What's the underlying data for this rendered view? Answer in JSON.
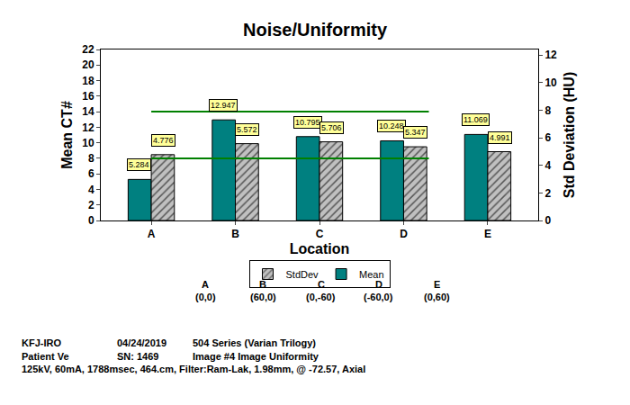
{
  "chart_data": {
    "type": "bar",
    "title": "Noise/Uniformity",
    "x_label": "Location",
    "y_label": "Mean CT#",
    "y2_label": "Std Deviation (HU)",
    "categories": [
      "A",
      "B",
      "C",
      "D",
      "E"
    ],
    "series": [
      {
        "name": "Mean",
        "color": "#008080",
        "values": [
          5.284,
          12.947,
          10.795,
          10.248,
          11.069
        ]
      },
      {
        "name": "StdDev",
        "color": "#c0c0c0",
        "marker": "hatched",
        "axis": "y2",
        "values": [
          4.776,
          5.572,
          5.706,
          5.347,
          4.991
        ]
      }
    ],
    "ylim": [
      0,
      22
    ],
    "yticks": [
      0,
      2,
      4,
      6,
      8,
      10,
      12,
      14,
      16,
      18,
      20,
      22
    ],
    "y2lim": [
      0,
      12.4
    ],
    "y2ticks": [
      0,
      2,
      4,
      6,
      8,
      10,
      12
    ],
    "grid": false,
    "legend": "bottom",
    "data_labels": true,
    "reference_lines": [
      {
        "axis": "y",
        "value": 14,
        "color": "#008000",
        "from": "A",
        "to": "D"
      },
      {
        "axis": "y",
        "value": 8,
        "color": "#008000",
        "from": "A",
        "to": "D"
      }
    ],
    "locations": [
      {
        "label": "A",
        "coords": "(0,0)"
      },
      {
        "label": "B",
        "coords": "(60,0)"
      },
      {
        "label": "C",
        "coords": "(0,-60)"
      },
      {
        "label": "D",
        "coords": "(-60,0)"
      },
      {
        "label": "E",
        "coords": "(0,60)"
      }
    ],
    "footer": [
      [
        "KFJ-IRO",
        "04/24/2019",
        "504 Series (Varian Trilogy)"
      ],
      [
        "Patient Ve",
        "SN: 1469",
        "Image #4 Image Uniformity"
      ],
      [
        "125kV, 60mA, 1788msec, 464.cm, Filter:Ram-Lak, 1.98mm, @ -72.57, Axial"
      ]
    ]
  }
}
